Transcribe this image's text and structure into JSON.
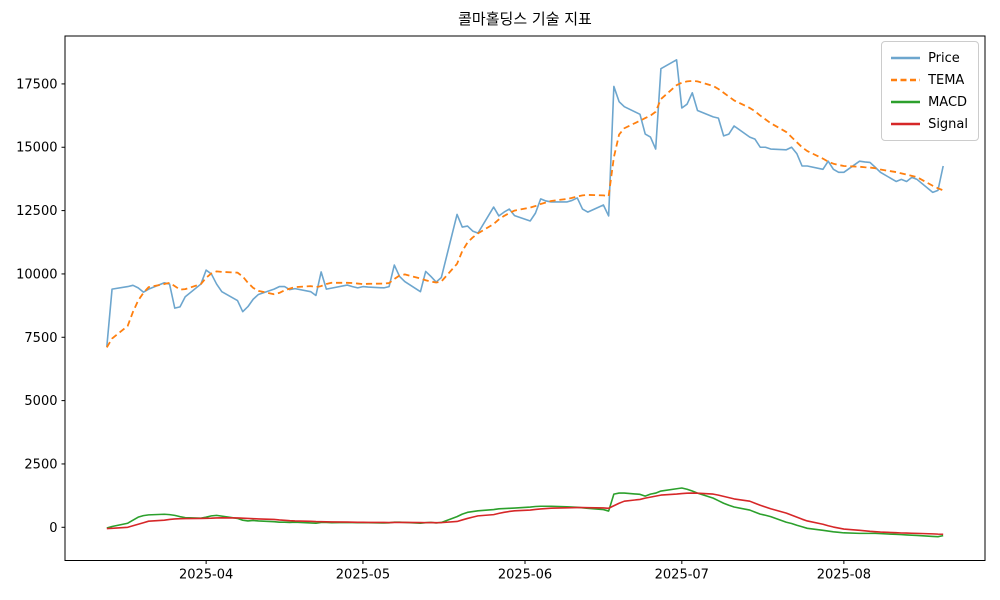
{
  "title": "콜마홀딩스 기술 지표",
  "figure": {
    "background": "#ffffff",
    "axis_color": "#000000",
    "tick_label_color": "#000000"
  },
  "chart_data": {
    "type": "line",
    "title": "콜마홀딩스 기술 지표",
    "xlabel": "",
    "ylabel": "",
    "grid": false,
    "legend_position": "upper right",
    "yticks": [
      0,
      2500,
      5000,
      7500,
      10000,
      12500,
      15000,
      17500
    ],
    "xticks": [
      {
        "label": "2025-04",
        "date": "2025-04-01"
      },
      {
        "label": "2025-05",
        "date": "2025-05-01"
      },
      {
        "label": "2025-06",
        "date": "2025-06-01"
      },
      {
        "label": "2025-07",
        "date": "2025-07-01"
      },
      {
        "label": "2025-08",
        "date": "2025-08-01"
      }
    ],
    "x": [
      "2025-03-13",
      "2025-03-14",
      "2025-03-17",
      "2025-03-18",
      "2025-03-19",
      "2025-03-20",
      "2025-03-21",
      "2025-03-24",
      "2025-03-25",
      "2025-03-26",
      "2025-03-27",
      "2025-03-28",
      "2025-03-31",
      "2025-04-01",
      "2025-04-02",
      "2025-04-03",
      "2025-04-04",
      "2025-04-07",
      "2025-04-08",
      "2025-04-09",
      "2025-04-10",
      "2025-04-11",
      "2025-04-14",
      "2025-04-15",
      "2025-04-16",
      "2025-04-17",
      "2025-04-18",
      "2025-04-21",
      "2025-04-22",
      "2025-04-23",
      "2025-04-24",
      "2025-04-25",
      "2025-04-28",
      "2025-04-29",
      "2025-04-30",
      "2025-05-01",
      "2025-05-02",
      "2025-05-05",
      "2025-05-06",
      "2025-05-07",
      "2025-05-08",
      "2025-05-09",
      "2025-05-12",
      "2025-05-13",
      "2025-05-14",
      "2025-05-15",
      "2025-05-16",
      "2025-05-19",
      "2025-05-20",
      "2025-05-21",
      "2025-05-22",
      "2025-05-23",
      "2025-05-26",
      "2025-05-27",
      "2025-05-28",
      "2025-05-29",
      "2025-05-30",
      "2025-06-02",
      "2025-06-03",
      "2025-06-04",
      "2025-06-05",
      "2025-06-06",
      "2025-06-09",
      "2025-06-10",
      "2025-06-11",
      "2025-06-12",
      "2025-06-13",
      "2025-06-16",
      "2025-06-17",
      "2025-06-18",
      "2025-06-19",
      "2025-06-20",
      "2025-06-23",
      "2025-06-24",
      "2025-06-25",
      "2025-06-26",
      "2025-06-27",
      "2025-06-30",
      "2025-07-01",
      "2025-07-02",
      "2025-07-03",
      "2025-07-04",
      "2025-07-07",
      "2025-07-08",
      "2025-07-09",
      "2025-07-10",
      "2025-07-11",
      "2025-07-14",
      "2025-07-15",
      "2025-07-16",
      "2025-07-17",
      "2025-07-18",
      "2025-07-21",
      "2025-07-22",
      "2025-07-23",
      "2025-07-24",
      "2025-07-25",
      "2025-07-28",
      "2025-07-29",
      "2025-07-30",
      "2025-07-31",
      "2025-08-01",
      "2025-08-04",
      "2025-08-05",
      "2025-08-06",
      "2025-08-07",
      "2025-08-08",
      "2025-08-11",
      "2025-08-12",
      "2025-08-13",
      "2025-08-14",
      "2025-08-15",
      "2025-08-18",
      "2025-08-19",
      "2025-08-20"
    ],
    "series": [
      {
        "name": "Price",
        "color": "#6da6ce",
        "style": "solid",
        "width": 1.6,
        "values": [
          7130,
          9400,
          9500,
          9550,
          9450,
          9280,
          9400,
          9650,
          9600,
          8650,
          8700,
          9100,
          9600,
          10150,
          10000,
          9600,
          9300,
          8950,
          8510,
          8710,
          9000,
          9190,
          9400,
          9500,
          9500,
          9380,
          9420,
          9300,
          9150,
          10080,
          9400,
          9440,
          9560,
          9500,
          9450,
          9500,
          9480,
          9450,
          9500,
          10350,
          9900,
          9700,
          9300,
          10100,
          9900,
          9680,
          9860,
          12350,
          11850,
          11890,
          11690,
          11610,
          12640,
          12290,
          12440,
          12560,
          12300,
          12090,
          12400,
          12960,
          12880,
          12840,
          12840,
          12900,
          13000,
          12560,
          12440,
          12720,
          12290,
          17400,
          16800,
          16600,
          16300,
          15520,
          15400,
          14930,
          18100,
          18450,
          16550,
          16700,
          17150,
          16450,
          16200,
          16150,
          15450,
          15520,
          15840,
          15400,
          15320,
          15000,
          15000,
          14930,
          14900,
          15000,
          14750,
          14260,
          14260,
          14130,
          14450,
          14130,
          14010,
          14010,
          14450,
          14420,
          14400,
          14210,
          14010,
          13650,
          13730,
          13650,
          13810,
          13730,
          13220,
          13300,
          14260
        ]
      },
      {
        "name": "TEMA",
        "color": "#ff7f0e",
        "style": "dashed",
        "width": 1.8,
        "values": [
          7100,
          7450,
          7950,
          8500,
          8950,
          9250,
          9480,
          9600,
          9650,
          9520,
          9380,
          9400,
          9600,
          9850,
          10020,
          10100,
          10080,
          10050,
          9900,
          9650,
          9450,
          9330,
          9200,
          9250,
          9350,
          9420,
          9480,
          9520,
          9480,
          9520,
          9600,
          9650,
          9650,
          9640,
          9620,
          9600,
          9610,
          9620,
          9640,
          9800,
          9940,
          9980,
          9820,
          9750,
          9700,
          9660,
          9700,
          10400,
          10900,
          11240,
          11440,
          11600,
          11970,
          12150,
          12290,
          12400,
          12500,
          12620,
          12680,
          12760,
          12820,
          12880,
          12960,
          13000,
          13060,
          13100,
          13120,
          13100,
          13070,
          14600,
          15500,
          15750,
          16050,
          16150,
          16250,
          16400,
          16900,
          17450,
          17550,
          17600,
          17620,
          17600,
          17420,
          17300,
          17150,
          17000,
          16850,
          16550,
          16420,
          16250,
          16100,
          15950,
          15600,
          15400,
          15200,
          15000,
          14850,
          14550,
          14430,
          14350,
          14300,
          14260,
          14230,
          14210,
          14200,
          14170,
          14120,
          14020,
          13970,
          13920,
          13870,
          13820,
          13480,
          13380,
          13300
        ]
      },
      {
        "name": "MACD",
        "color": "#2ca02c",
        "style": "solid",
        "width": 1.6,
        "values": [
          -30,
          30,
          160,
          280,
          400,
          460,
          490,
          515,
          500,
          470,
          420,
          380,
          360,
          400,
          450,
          470,
          440,
          350,
          280,
          250,
          270,
          250,
          220,
          200,
          200,
          190,
          200,
          170,
          160,
          190,
          190,
          180,
          190,
          185,
          180,
          180,
          180,
          170,
          175,
          200,
          200,
          190,
          160,
          180,
          190,
          170,
          190,
          420,
          520,
          590,
          620,
          650,
          700,
          730,
          740,
          750,
          760,
          800,
          820,
          830,
          830,
          830,
          810,
          800,
          790,
          770,
          750,
          700,
          640,
          1310,
          1350,
          1350,
          1300,
          1230,
          1310,
          1350,
          1430,
          1520,
          1550,
          1500,
          1430,
          1350,
          1150,
          1050,
          950,
          870,
          800,
          680,
          600,
          520,
          475,
          420,
          200,
          150,
          80,
          20,
          -40,
          -120,
          -150,
          -180,
          -200,
          -220,
          -240,
          -240,
          -240,
          -240,
          -250,
          -280,
          -290,
          -300,
          -310,
          -320,
          -360,
          -370,
          -330
        ]
      },
      {
        "name": "Signal",
        "color": "#d62728",
        "style": "solid",
        "width": 1.6,
        "values": [
          -50,
          -40,
          0,
          60,
          120,
          180,
          240,
          280,
          310,
          330,
          340,
          345,
          350,
          355,
          360,
          370,
          375,
          370,
          360,
          350,
          340,
          330,
          310,
          290,
          275,
          260,
          250,
          235,
          225,
          220,
          215,
          210,
          205,
          200,
          198,
          195,
          193,
          190,
          188,
          190,
          192,
          192,
          185,
          184,
          185,
          183,
          184,
          230,
          290,
          350,
          400,
          450,
          500,
          550,
          590,
          625,
          650,
          680,
          705,
          725,
          740,
          755,
          770,
          775,
          780,
          780,
          775,
          765,
          750,
          850,
          950,
          1030,
          1100,
          1150,
          1190,
          1230,
          1270,
          1310,
          1330,
          1345,
          1350,
          1345,
          1310,
          1270,
          1220,
          1170,
          1120,
          1030,
          950,
          870,
          800,
          730,
          560,
          480,
          400,
          320,
          250,
          120,
          60,
          10,
          -30,
          -70,
          -120,
          -140,
          -160,
          -175,
          -190,
          -215,
          -225,
          -230,
          -235,
          -240,
          -260,
          -270,
          -275
        ]
      }
    ]
  }
}
